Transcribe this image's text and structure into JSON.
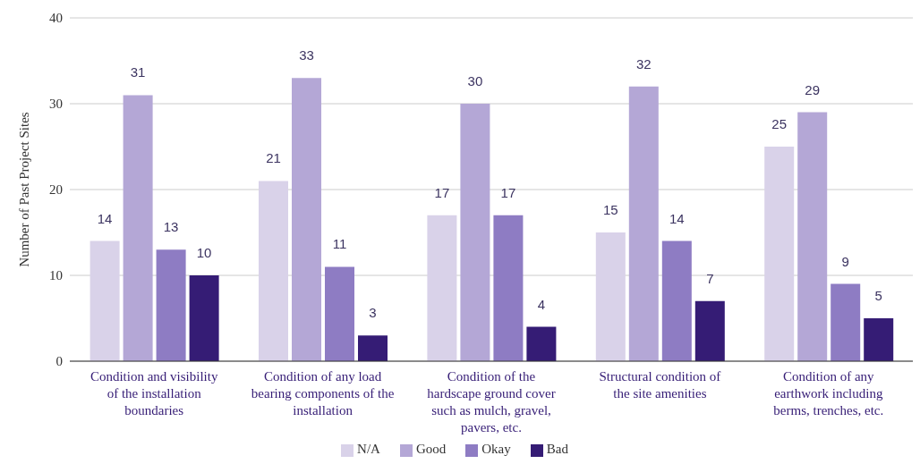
{
  "chart_data": {
    "type": "bar",
    "ylabel": "Number of Past Project Sites",
    "categories": [
      "Condition and visibility of the installation boundaries",
      "Condition of any load bearing components of the installation",
      "Condition of the hardscape ground cover such as mulch, gravel, pavers, etc.",
      "Structural condition of the site amenities",
      "Condition of any earthwork including berms, trenches, etc."
    ],
    "series": [
      {
        "name": "N/A",
        "color": "#d9d2e9",
        "values": [
          14,
          21,
          17,
          15,
          25
        ]
      },
      {
        "name": "Good",
        "color": "#b4a7d6",
        "values": [
          31,
          33,
          30,
          32,
          29
        ]
      },
      {
        "name": "Okay",
        "color": "#8e7cc3",
        "values": [
          13,
          11,
          17,
          14,
          9
        ]
      },
      {
        "name": "Bad",
        "color": "#351c75",
        "values": [
          10,
          3,
          4,
          7,
          5
        ]
      }
    ],
    "ylim": [
      0,
      40
    ],
    "yticks": [
      0,
      10,
      20,
      30,
      40
    ],
    "grid": "y",
    "legend": "bottom",
    "data_labels": true
  }
}
